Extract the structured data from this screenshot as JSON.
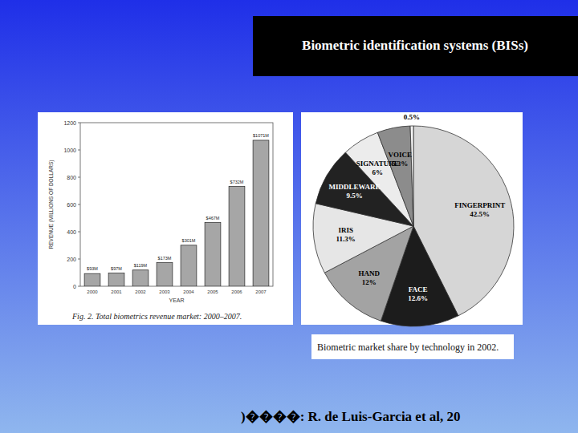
{
  "slide": {
    "title": "Biometric identification systems (BISs)",
    "citation": ")����: R. de Luis-Garcia et al, 20"
  },
  "chart_data": [
    {
      "type": "bar",
      "title": "Fig. 2. Total biometrics revenue market: 2000–2007.",
      "x_label": "YEAR",
      "y_label": "REVENUE (MILLIONS OF DOLLARS)",
      "categories": [
        "2000",
        "2001",
        "2002",
        "2003",
        "2004",
        "2005",
        "2006",
        "2007"
      ],
      "values": [
        93,
        97,
        119,
        173,
        301,
        467,
        732,
        1071
      ],
      "value_labels": [
        "$93M",
        "$97M",
        "$119M",
        "$173M",
        "$301M",
        "$467M",
        "$732M",
        "$1071M"
      ],
      "data_labels": true,
      "color": "#a6a6a6",
      "ylim": [
        0,
        1200
      ],
      "yticks": [
        0,
        200,
        400,
        600,
        800,
        1000,
        1200
      ],
      "grid": false
    },
    {
      "type": "pie",
      "title": "Biometric market share by technology in 2002.",
      "categories": [
        "FINGERPRINT",
        "FACE",
        "HAND",
        "IRIS",
        "MIDDLEWARE",
        "SIGNATURE",
        "VOICE",
        null
      ],
      "values": [
        42.5,
        12.6,
        12,
        11.3,
        9.5,
        6,
        5.3,
        0.5
      ],
      "value_labels": [
        "42.5%",
        "12.6%",
        "12%",
        "11.3%",
        "9.5%",
        "6%",
        "5.3%",
        "0.5%"
      ],
      "data_labels": true,
      "colors": [
        "#d6d6d6",
        "#1c1c1c",
        "#a3a3a3",
        "#e6e6e6",
        "#222222",
        "#ececec",
        "#8c8c8c",
        "#f4f4f4"
      ]
    }
  ]
}
